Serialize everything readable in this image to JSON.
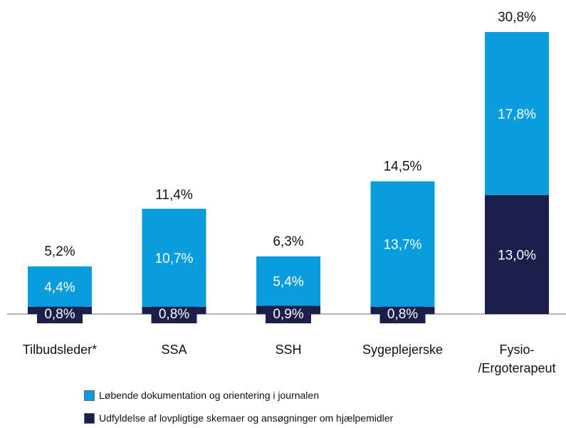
{
  "chart_data": {
    "type": "stacked_bar",
    "categories": [
      "Tilbudsleder*",
      "SSA",
      "SSH",
      "Sygeplejerske",
      "Fysio-\n/Ergoterapeut"
    ],
    "series": [
      {
        "name": "Løbende dokumentation og orientering i journalen",
        "color": "#0a9ddd",
        "values": [
          4.4,
          10.7,
          5.4,
          13.7,
          17.8
        ],
        "value_labels": [
          "4,4%",
          "10,7%",
          "5,4%",
          "13,7%",
          "17,8%"
        ]
      },
      {
        "name": "Udfyldelse af lovpligtige skemaer og ansøgninger om hjælpemidler",
        "color": "#1c1e4b",
        "values": [
          0.8,
          0.8,
          0.9,
          0.8,
          13.0
        ],
        "value_labels": [
          "0,8%",
          "0,8%",
          "0,9%",
          "0,8%",
          "13,0%"
        ]
      }
    ],
    "totals": [
      5.2,
      11.4,
      6.3,
      14.5,
      30.8
    ],
    "total_labels": [
      "5,2%",
      "11,4%",
      "6,3%",
      "14,5%",
      "30,8%"
    ]
  }
}
